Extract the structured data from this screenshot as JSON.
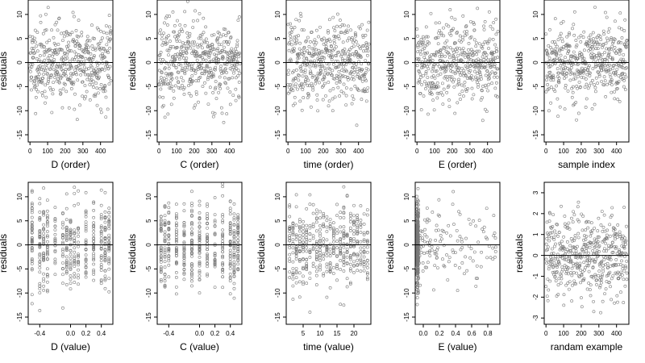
{
  "figure": {
    "background": "#ffffff",
    "point_color": "#7a7a7a",
    "axis_color": "#000000"
  },
  "chart_data": [
    {
      "type": "scatter",
      "title": "",
      "xlabel": "D (order)",
      "ylabel": "residuals",
      "xlim": [
        -10,
        470
      ],
      "ylim": [
        -16.5,
        13
      ],
      "xticks": [
        0,
        100,
        200,
        300,
        400
      ],
      "yticks": [
        10,
        5,
        0,
        -5,
        -10,
        -15
      ],
      "ref_line": 0,
      "x_kind": "index",
      "y_scale": 4.2,
      "seed": 11,
      "n": 460
    },
    {
      "type": "scatter",
      "title": "",
      "xlabel": "C (order)",
      "ylabel": "residuals",
      "xlim": [
        -10,
        470
      ],
      "ylim": [
        -16.5,
        13
      ],
      "xticks": [
        0,
        100,
        200,
        300,
        400
      ],
      "yticks": [
        10,
        5,
        0,
        -5,
        -10,
        -15
      ],
      "ref_line": 0,
      "x_kind": "index",
      "y_scale": 4.2,
      "seed": 23,
      "n": 460
    },
    {
      "type": "scatter",
      "title": "",
      "xlabel": "time (order)",
      "ylabel": "residuals",
      "xlim": [
        -10,
        470
      ],
      "ylim": [
        -16.5,
        13
      ],
      "xticks": [
        0,
        100,
        200,
        300,
        400
      ],
      "yticks": [
        10,
        5,
        0,
        -5,
        -10,
        -15
      ],
      "ref_line": 0,
      "x_kind": "index",
      "y_scale": 4.2,
      "seed": 37,
      "n": 460
    },
    {
      "type": "scatter",
      "title": "",
      "xlabel": "E (order)",
      "ylabel": "residuals",
      "xlim": [
        -10,
        470
      ],
      "ylim": [
        -16.5,
        13
      ],
      "xticks": [
        0,
        100,
        200,
        300,
        400
      ],
      "yticks": [
        10,
        5,
        0,
        -5,
        -10,
        -15
      ],
      "ref_line": 0,
      "x_kind": "index",
      "y_scale": 4.2,
      "seed": 41,
      "n": 460
    },
    {
      "type": "scatter",
      "title": "",
      "xlabel": "sample index",
      "ylabel": "residuals",
      "xlim": [
        -10,
        470
      ],
      "ylim": [
        -16.5,
        13
      ],
      "xticks": [
        0,
        100,
        200,
        300,
        400
      ],
      "yticks": [
        10,
        5,
        0,
        -5,
        -10,
        -15
      ],
      "ref_line": 0,
      "x_kind": "index",
      "y_scale": 4.2,
      "seed": 53,
      "n": 460
    },
    {
      "type": "scatter",
      "title": "",
      "xlabel": "D (value)",
      "ylabel": "residuals",
      "xlim": [
        -0.55,
        0.55
      ],
      "ylim": [
        -16.5,
        13
      ],
      "xticks": [
        -0.4,
        0.0,
        0.2,
        0.4
      ],
      "xtick_labels": [
        "-0.4",
        "0.0",
        "0.2",
        "0.4"
      ],
      "yticks": [
        10,
        5,
        0,
        -5,
        -10,
        -15
      ],
      "ref_line": 0,
      "x_kind": "discrete",
      "x_levels": [
        -0.5,
        -0.4,
        -0.35,
        -0.3,
        -0.2,
        -0.1,
        -0.05,
        0.0,
        0.05,
        0.1,
        0.2,
        0.3,
        0.4,
        0.45,
        0.5
      ],
      "y_scale": 4.2,
      "seed": 67,
      "n": 460
    },
    {
      "type": "scatter",
      "title": "",
      "xlabel": "C (value)",
      "ylabel": "residuals",
      "xlim": [
        -0.55,
        0.55
      ],
      "ylim": [
        -16.5,
        13
      ],
      "xticks": [
        -0.4,
        0.0,
        0.2,
        0.4
      ],
      "xtick_labels": [
        "-0.4",
        "0.0",
        "0.2",
        "0.4"
      ],
      "yticks": [
        10,
        5,
        0,
        -5,
        -10,
        -15
      ],
      "ref_line": 0,
      "x_kind": "discrete",
      "x_levels": [
        -0.5,
        -0.45,
        -0.4,
        -0.3,
        -0.2,
        -0.1,
        0.0,
        0.1,
        0.2,
        0.3,
        0.4,
        0.45,
        0.5
      ],
      "y_scale": 4.2,
      "seed": 79,
      "n": 460
    },
    {
      "type": "scatter",
      "title": "",
      "xlabel": "time (value)",
      "ylabel": "residuals",
      "xlim": [
        0,
        25
      ],
      "ylim": [
        -16.5,
        13
      ],
      "xticks": [
        5,
        10,
        15,
        20
      ],
      "xtick_labels": [
        "5",
        "10",
        "15",
        "20"
      ],
      "yticks": [
        10,
        5,
        0,
        -5,
        -10,
        -15
      ],
      "ref_line": 0,
      "x_kind": "discrete",
      "x_levels": [
        1,
        2,
        3,
        4,
        5,
        6,
        7,
        8,
        9,
        10,
        11,
        12,
        13,
        14,
        15,
        16,
        17,
        18,
        19,
        20,
        21,
        22,
        23,
        24
      ],
      "y_scale": 4.2,
      "seed": 83,
      "n": 460
    },
    {
      "type": "scatter",
      "title": "",
      "xlabel": "E (value)",
      "ylabel": "residuals",
      "xlim": [
        -0.1,
        0.95
      ],
      "ylim": [
        -16.5,
        13
      ],
      "xticks": [
        0.0,
        0.2,
        0.4,
        0.6,
        0.8
      ],
      "xtick_labels": [
        "0.0",
        "0.2",
        "0.4",
        "0.6",
        "0.8"
      ],
      "yticks": [
        10,
        5,
        0,
        -5,
        -10,
        -15
      ],
      "ref_line": 0,
      "x_kind": "skewed",
      "x_min": -0.08,
      "x_max": 0.9,
      "y_scale": 4.2,
      "seed": 97,
      "n": 460
    },
    {
      "type": "scatter",
      "title": "",
      "xlabel": "randam example",
      "ylabel": "residuals",
      "xlim": [
        -10,
        470
      ],
      "ylim": [
        -3.3,
        3.5
      ],
      "xticks": [
        0,
        100,
        200,
        300,
        400
      ],
      "yticks": [
        3,
        2,
        1,
        0,
        -1,
        -2,
        -3
      ],
      "ref_line": 0,
      "x_kind": "index",
      "y_scale": 1.0,
      "seed": 101,
      "n": 460
    }
  ]
}
